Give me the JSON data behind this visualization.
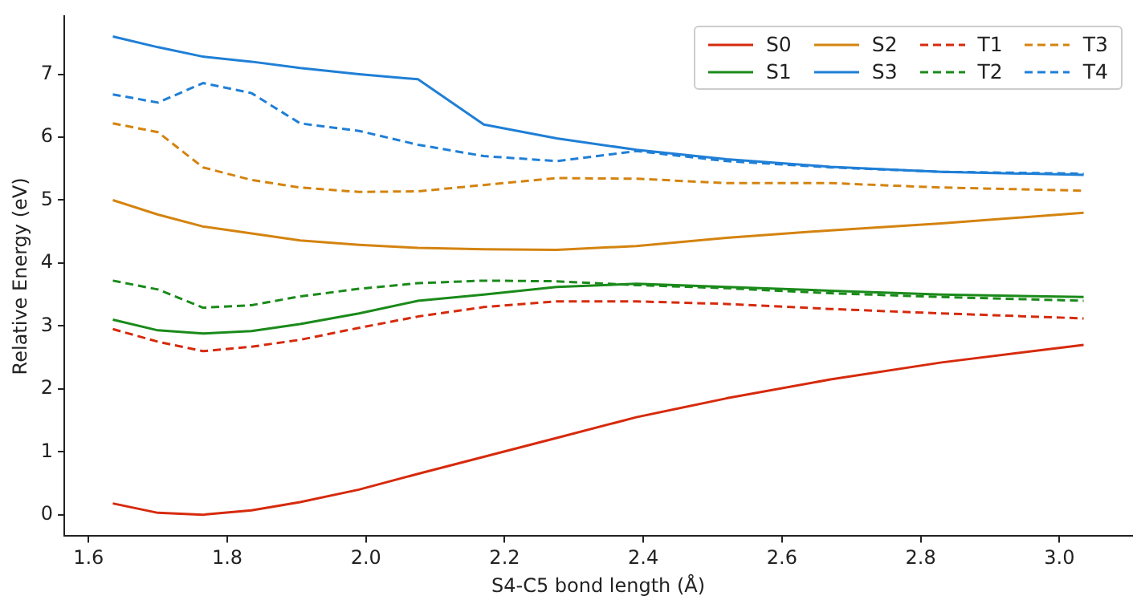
{
  "chart_data": {
    "type": "line",
    "xlabel": "S4-C5 bond length (Å)",
    "ylabel": "Relative Energy (eV)",
    "x": [
      1.635,
      1.7,
      1.765,
      1.835,
      1.905,
      1.99,
      2.075,
      2.17,
      2.275,
      2.39,
      2.52,
      2.67,
      2.83,
      3.035
    ],
    "xlim": [
      1.565,
      3.105
    ],
    "xticks": [
      1.6,
      1.8,
      {
        "value": 2,
        "label": "2.0"
      },
      2.2,
      2.4,
      2.6,
      2.8,
      {
        "value": 3,
        "label": "3.0"
      }
    ],
    "ylim": [
      -0.34,
      7.92
    ],
    "yticks": [
      0,
      1,
      2,
      3,
      4,
      5,
      6,
      7
    ],
    "grid": false,
    "legend": "top right",
    "marker": "none",
    "series": [
      {
        "name": "S0",
        "color": "#d62a0c",
        "line_style": "solid",
        "values": [
          0.18,
          0.03,
          0.0,
          0.07,
          0.2,
          0.4,
          0.65,
          0.92,
          1.22,
          1.55,
          1.85,
          2.15,
          2.42,
          2.7
        ]
      },
      {
        "name": "S1",
        "color": "#1a8a1a",
        "line_style": "solid",
        "values": [
          3.1,
          2.93,
          2.88,
          2.92,
          3.03,
          3.2,
          3.4,
          3.5,
          3.62,
          3.67,
          3.62,
          3.56,
          3.5,
          3.46
        ]
      },
      {
        "name": "S2",
        "color": "#d4830f",
        "line_style": "solid",
        "values": [
          5.0,
          4.77,
          4.58,
          4.47,
          4.36,
          4.29,
          4.24,
          4.22,
          4.21,
          4.27,
          4.4,
          4.52,
          4.63,
          4.8
        ]
      },
      {
        "name": "S3",
        "color": "#1f7fd6",
        "line_style": "solid",
        "values": [
          7.6,
          7.43,
          7.28,
          7.2,
          7.1,
          7.0,
          6.92,
          6.2,
          5.98,
          5.8,
          5.65,
          5.53,
          5.45,
          5.4
        ]
      },
      {
        "name": "T1",
        "color": "#d62a0c",
        "line_style": "dashed",
        "values": [
          2.95,
          2.75,
          2.6,
          2.67,
          2.78,
          2.97,
          3.15,
          3.3,
          3.39,
          3.39,
          3.35,
          3.27,
          3.2,
          3.12
        ]
      },
      {
        "name": "T2",
        "color": "#1a8a1a",
        "line_style": "dashed",
        "values": [
          3.72,
          3.58,
          3.29,
          3.33,
          3.47,
          3.59,
          3.68,
          3.72,
          3.71,
          3.65,
          3.6,
          3.52,
          3.46,
          3.4
        ]
      },
      {
        "name": "T3",
        "color": "#d4830f",
        "line_style": "dashed",
        "values": [
          6.22,
          6.08,
          5.52,
          5.32,
          5.2,
          5.13,
          5.14,
          5.24,
          5.35,
          5.34,
          5.27,
          5.27,
          5.2,
          5.15
        ]
      },
      {
        "name": "T4",
        "color": "#1f7fd6",
        "line_style": "dashed",
        "values": [
          6.68,
          6.55,
          6.86,
          6.7,
          6.22,
          6.1,
          5.88,
          5.7,
          5.62,
          5.78,
          5.62,
          5.52,
          5.45,
          5.42
        ]
      }
    ]
  }
}
